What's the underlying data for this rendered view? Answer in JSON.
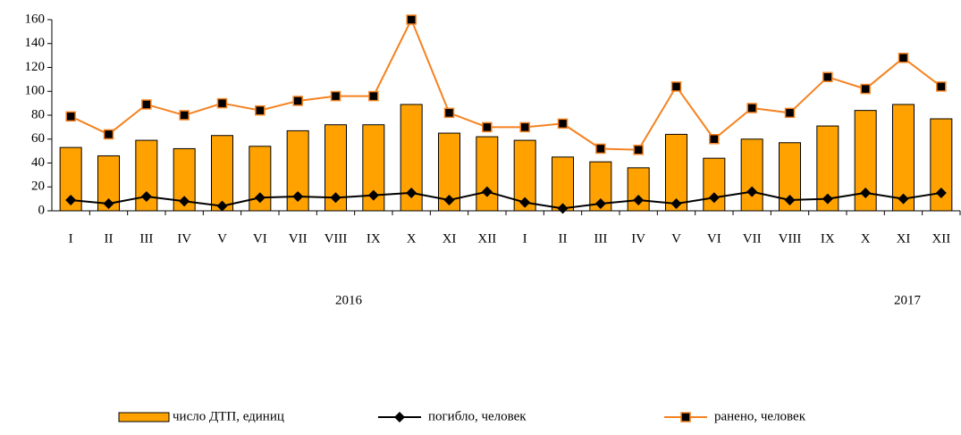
{
  "chart_data": {
    "type": "bar_line",
    "categories": [
      "I",
      "II",
      "III",
      "IV",
      "V",
      "VI",
      "VII",
      "VIII",
      "IX",
      "X",
      "XI",
      "XII",
      "I",
      "II",
      "III",
      "IV",
      "V",
      "VI",
      "VII",
      "VIII",
      "IX",
      "X",
      "XI",
      "XII"
    ],
    "group_labels": [
      "2016",
      "2017"
    ],
    "series": [
      {
        "name": "число ДТП, единиц",
        "type": "bar",
        "color": "#ffa200",
        "values": [
          53,
          46,
          59,
          52,
          63,
          54,
          67,
          72,
          72,
          89,
          65,
          62,
          59,
          45,
          41,
          36,
          64,
          44,
          60,
          57,
          71,
          84,
          89,
          77
        ]
      },
      {
        "name": "погибло, человек",
        "type": "line",
        "color": "#000000",
        "marker": "diamond",
        "values": [
          9,
          6,
          12,
          8,
          4,
          11,
          12,
          11,
          13,
          15,
          9,
          16,
          7,
          2,
          6,
          9,
          6,
          11,
          16,
          9,
          10,
          15,
          10,
          15
        ]
      },
      {
        "name": "ранено, человек",
        "type": "line",
        "color": "#f58220",
        "marker": "square",
        "values": [
          79,
          64,
          89,
          80,
          90,
          84,
          92,
          96,
          96,
          160,
          82,
          70,
          70,
          73,
          52,
          51,
          104,
          60,
          86,
          82,
          112,
          102,
          128,
          104
        ]
      }
    ],
    "ylim": [
      0,
      160
    ],
    "yticks": [
      0,
      20,
      40,
      60,
      80,
      100,
      120,
      140,
      160
    ],
    "grid": false,
    "legend": "bottom"
  }
}
